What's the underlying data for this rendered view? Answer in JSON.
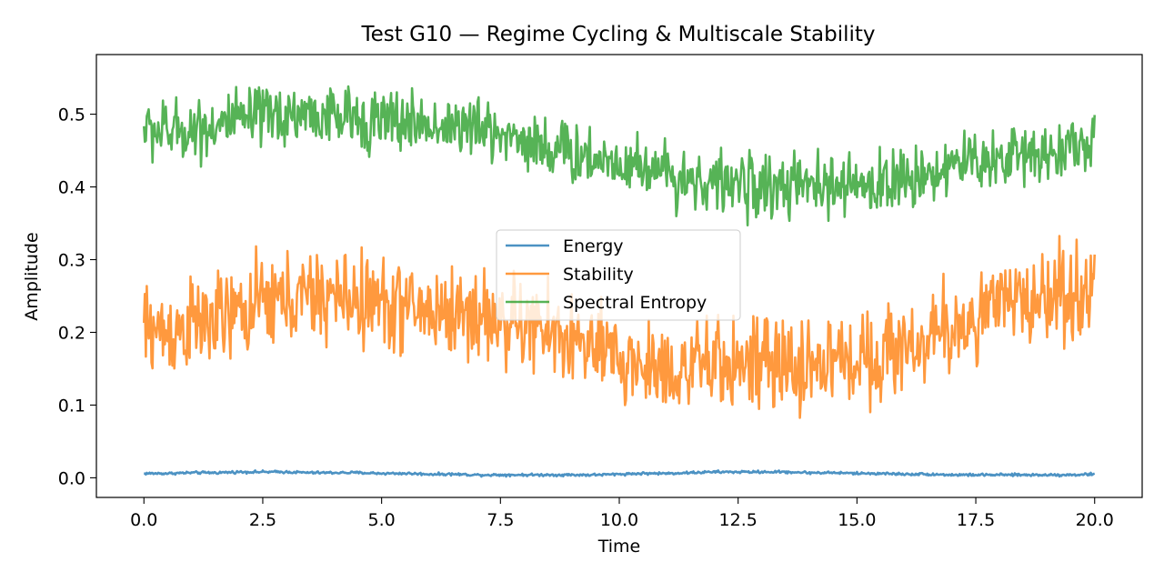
{
  "chart_data": {
    "type": "line",
    "title": "Test G10 — Regime Cycling & Multiscale Stability",
    "xlabel": "Time",
    "ylabel": "Amplitude",
    "xlim": [
      -1.0,
      21.0
    ],
    "ylim": [
      -0.027,
      0.582
    ],
    "xticks": [
      0.0,
      2.5,
      5.0,
      7.5,
      10.0,
      12.5,
      15.0,
      17.5,
      20.0
    ],
    "xtick_labels": [
      "0.0",
      "2.5",
      "5.0",
      "7.5",
      "10.0",
      "12.5",
      "15.0",
      "17.5",
      "20.0"
    ],
    "yticks": [
      0.0,
      0.1,
      0.2,
      0.3,
      0.4,
      0.5
    ],
    "ytick_labels": [
      "0.0",
      "0.1",
      "0.2",
      "0.3",
      "0.4",
      "0.5"
    ],
    "grid": false,
    "legend_position": "center",
    "x": [
      0.0,
      0.5,
      1.0,
      1.5,
      2.0,
      2.5,
      3.0,
      3.5,
      4.0,
      4.5,
      5.0,
      5.5,
      6.0,
      6.5,
      7.0,
      7.5,
      8.0,
      8.5,
      9.0,
      9.5,
      10.0,
      10.5,
      11.0,
      11.5,
      12.0,
      12.5,
      13.0,
      13.5,
      14.0,
      14.5,
      15.0,
      15.5,
      16.0,
      16.5,
      17.0,
      17.5,
      18.0,
      18.5,
      19.0,
      19.5,
      20.0
    ],
    "series": [
      {
        "name": "Energy",
        "color": "#1f77b4",
        "values": [
          0.006,
          0.006,
          0.007,
          0.007,
          0.008,
          0.008,
          0.008,
          0.007,
          0.007,
          0.007,
          0.006,
          0.006,
          0.005,
          0.005,
          0.004,
          0.004,
          0.004,
          0.004,
          0.004,
          0.004,
          0.005,
          0.006,
          0.006,
          0.007,
          0.008,
          0.008,
          0.008,
          0.008,
          0.007,
          0.007,
          0.006,
          0.006,
          0.005,
          0.005,
          0.004,
          0.004,
          0.004,
          0.004,
          0.004,
          0.004,
          0.005
        ]
      },
      {
        "name": "Stability",
        "color": "#ff7f0e",
        "values": [
          0.205,
          0.2,
          0.21,
          0.215,
          0.225,
          0.24,
          0.245,
          0.248,
          0.25,
          0.245,
          0.24,
          0.235,
          0.23,
          0.228,
          0.225,
          0.215,
          0.21,
          0.2,
          0.19,
          0.175,
          0.16,
          0.155,
          0.15,
          0.15,
          0.155,
          0.16,
          0.155,
          0.15,
          0.155,
          0.16,
          0.165,
          0.17,
          0.18,
          0.19,
          0.205,
          0.22,
          0.235,
          0.245,
          0.25,
          0.255,
          0.26
        ]
      },
      {
        "name": "Spectral Entropy",
        "color": "#2ca02c",
        "values": [
          0.48,
          0.475,
          0.48,
          0.485,
          0.49,
          0.495,
          0.5,
          0.5,
          0.495,
          0.495,
          0.49,
          0.49,
          0.485,
          0.485,
          0.48,
          0.475,
          0.465,
          0.455,
          0.445,
          0.44,
          0.435,
          0.43,
          0.42,
          0.41,
          0.405,
          0.405,
          0.4,
          0.4,
          0.4,
          0.4,
          0.4,
          0.405,
          0.41,
          0.42,
          0.43,
          0.435,
          0.44,
          0.445,
          0.45,
          0.455,
          0.46
        ]
      }
    ]
  }
}
